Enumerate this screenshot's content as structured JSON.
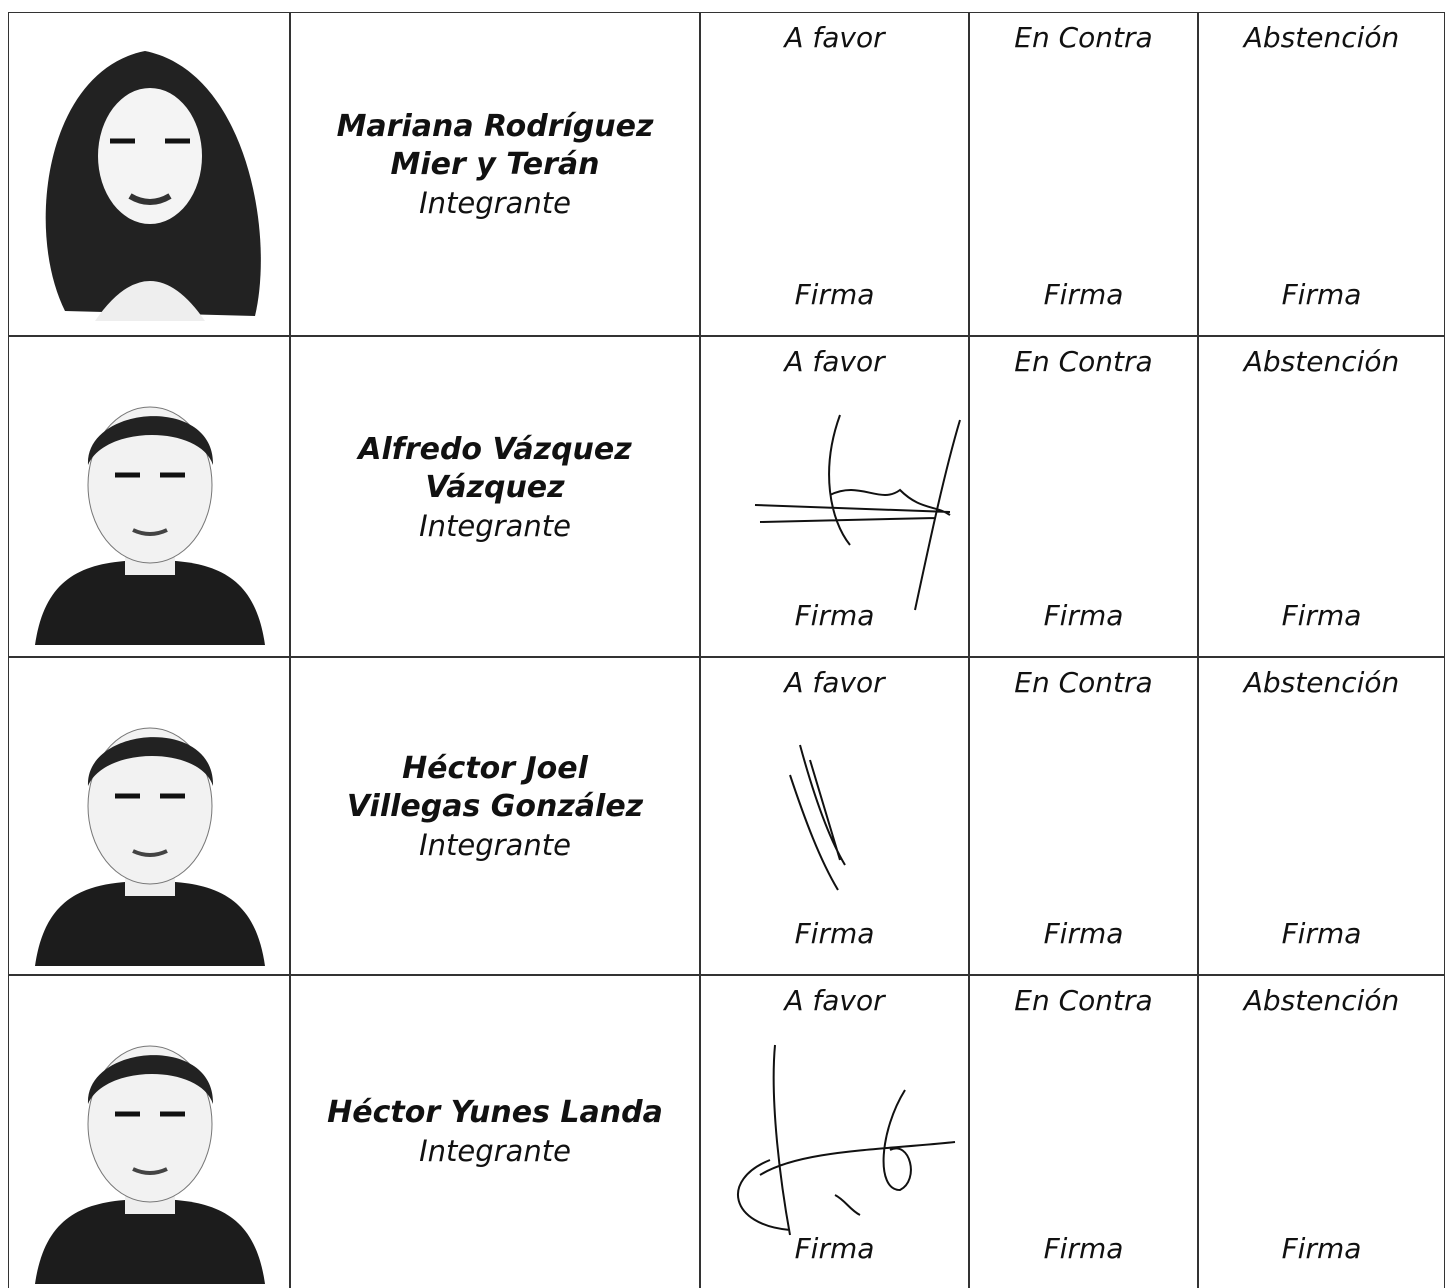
{
  "table": {
    "rows": [
      {
        "name_lines": [
          "Mariana Rodríguez",
          "Mier y Terán"
        ],
        "role": "Integrante",
        "votes": [
          {
            "label": "A favor",
            "sign": "Firma"
          },
          {
            "label": "En Contra",
            "sign": "Firma"
          },
          {
            "label": "Abstención",
            "sign": "Firma"
          }
        ]
      },
      {
        "name_lines": [
          "Alfredo Vázquez",
          "Vázquez"
        ],
        "role": "Integrante",
        "votes": [
          {
            "label": "A favor",
            "sign": "Firma"
          },
          {
            "label": "En Contra",
            "sign": "Firma"
          },
          {
            "label": "Abstención",
            "sign": "Firma"
          }
        ]
      },
      {
        "name_lines": [
          "Héctor Joel",
          "Villegas González"
        ],
        "role": "Integrante",
        "votes": [
          {
            "label": "A favor",
            "sign": "Firma"
          },
          {
            "label": "En Contra",
            "sign": "Firma"
          },
          {
            "label": "Abstención",
            "sign": "Firma"
          }
        ]
      },
      {
        "name_lines": [
          "Héctor Yunes Landa"
        ],
        "role": "Integrante",
        "votes": [
          {
            "label": "A favor",
            "sign": "Firma"
          },
          {
            "label": "En Contra",
            "sign": "Firma"
          },
          {
            "label": "Abstención",
            "sign": "Firma"
          }
        ]
      }
    ]
  }
}
